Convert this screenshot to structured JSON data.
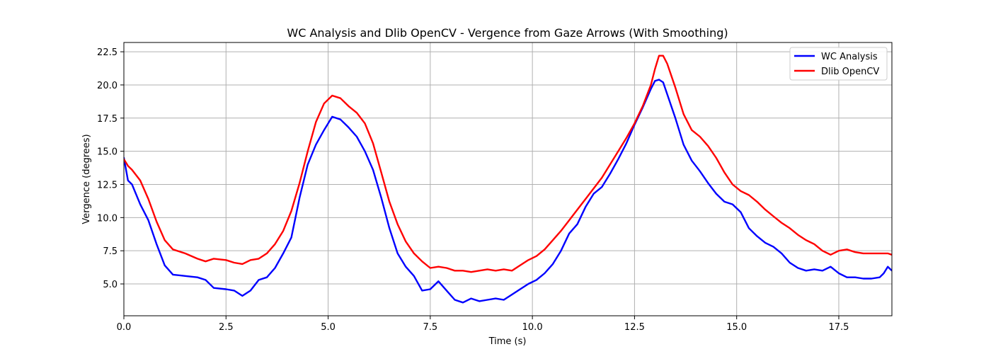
{
  "chart_data": {
    "type": "line",
    "title": "WC Analysis and Dlib OpenCV - Vergence from Gaze Arrows (With Smoothing)",
    "xlabel": "Time (s)",
    "ylabel": "Vergence (degrees)",
    "xlim": [
      0,
      18.8
    ],
    "ylim": [
      2.6,
      23.2
    ],
    "xticks": [
      0,
      2.5,
      5,
      7.5,
      10,
      12.5,
      15,
      17.5
    ],
    "xtick_labels": [
      "0.0",
      "2.5",
      "5.0",
      "7.5",
      "10.0",
      "12.5",
      "15.0",
      "17.5"
    ],
    "yticks": [
      5,
      7.5,
      10,
      12.5,
      15,
      17.5,
      20,
      22.5
    ],
    "ytick_labels": [
      "5.0",
      "7.5",
      "10.0",
      "12.5",
      "15.0",
      "17.5",
      "20.0",
      "22.5"
    ],
    "grid": true,
    "legend_position": "top-right",
    "series": [
      {
        "name": "WC Analysis",
        "color": "#0000ff",
        "x": [
          0,
          0.1,
          0.2,
          0.4,
          0.6,
          0.8,
          1.0,
          1.2,
          1.5,
          1.8,
          2.0,
          2.2,
          2.5,
          2.7,
          2.9,
          3.1,
          3.3,
          3.5,
          3.7,
          3.9,
          4.1,
          4.3,
          4.5,
          4.7,
          4.9,
          5.1,
          5.3,
          5.5,
          5.7,
          5.9,
          6.1,
          6.3,
          6.5,
          6.7,
          6.9,
          7.1,
          7.3,
          7.5,
          7.7,
          7.9,
          8.1,
          8.3,
          8.5,
          8.7,
          8.9,
          9.1,
          9.3,
          9.5,
          9.7,
          9.9,
          10.1,
          10.3,
          10.5,
          10.7,
          10.9,
          11.1,
          11.3,
          11.5,
          11.7,
          11.9,
          12.1,
          12.3,
          12.5,
          12.7,
          12.9,
          13.0,
          13.1,
          13.2,
          13.3,
          13.5,
          13.7,
          13.9,
          14.1,
          14.3,
          14.5,
          14.7,
          14.9,
          15.1,
          15.3,
          15.5,
          15.7,
          15.9,
          16.1,
          16.3,
          16.5,
          16.7,
          16.9,
          17.1,
          17.3,
          17.5,
          17.7,
          17.9,
          18.1,
          18.3,
          18.5,
          18.6,
          18.7,
          18.8
        ],
        "y": [
          14.5,
          12.8,
          12.5,
          11.0,
          9.8,
          8.0,
          6.4,
          5.7,
          5.6,
          5.5,
          5.3,
          4.7,
          4.6,
          4.5,
          4.1,
          4.5,
          5.3,
          5.5,
          6.2,
          7.3,
          8.5,
          11.5,
          14.0,
          15.5,
          16.6,
          17.6,
          17.4,
          16.8,
          16.1,
          15.0,
          13.6,
          11.5,
          9.2,
          7.3,
          6.3,
          5.6,
          4.5,
          4.6,
          5.2,
          4.5,
          3.8,
          3.6,
          3.9,
          3.7,
          3.8,
          3.9,
          3.8,
          4.2,
          4.6,
          5.0,
          5.3,
          5.8,
          6.5,
          7.5,
          8.8,
          9.5,
          10.8,
          11.8,
          12.3,
          13.3,
          14.4,
          15.6,
          17.0,
          18.3,
          19.7,
          20.3,
          20.4,
          20.2,
          19.3,
          17.5,
          15.5,
          14.3,
          13.5,
          12.6,
          11.8,
          11.2,
          11.0,
          10.4,
          9.2,
          8.6,
          8.1,
          7.8,
          7.3,
          6.6,
          6.2,
          6.0,
          6.1,
          6.0,
          6.3,
          5.8,
          5.5,
          5.5,
          5.4,
          5.4,
          5.5,
          5.8,
          6.3,
          6.0
        ]
      },
      {
        "name": "Dlib OpenCV",
        "color": "#ff0000",
        "x": [
          0,
          0.1,
          0.2,
          0.4,
          0.6,
          0.8,
          1.0,
          1.2,
          1.5,
          1.8,
          2.0,
          2.2,
          2.5,
          2.7,
          2.9,
          3.1,
          3.3,
          3.5,
          3.7,
          3.9,
          4.1,
          4.3,
          4.5,
          4.7,
          4.9,
          5.1,
          5.3,
          5.5,
          5.7,
          5.9,
          6.1,
          6.3,
          6.5,
          6.7,
          6.9,
          7.1,
          7.3,
          7.5,
          7.7,
          7.9,
          8.1,
          8.3,
          8.5,
          8.7,
          8.9,
          9.1,
          9.3,
          9.5,
          9.7,
          9.9,
          10.1,
          10.3,
          10.5,
          10.7,
          10.9,
          11.1,
          11.3,
          11.5,
          11.7,
          11.9,
          12.1,
          12.3,
          12.5,
          12.7,
          12.9,
          13.0,
          13.1,
          13.2,
          13.3,
          13.5,
          13.7,
          13.9,
          14.1,
          14.3,
          14.5,
          14.7,
          14.9,
          15.1,
          15.3,
          15.5,
          15.7,
          15.9,
          16.1,
          16.3,
          16.5,
          16.7,
          16.9,
          17.1,
          17.3,
          17.5,
          17.7,
          17.9,
          18.1,
          18.3,
          18.5,
          18.6,
          18.7,
          18.8
        ],
        "y": [
          14.4,
          13.9,
          13.6,
          12.8,
          11.4,
          9.7,
          8.3,
          7.6,
          7.3,
          6.9,
          6.7,
          6.9,
          6.8,
          6.6,
          6.5,
          6.8,
          6.9,
          7.3,
          8.0,
          9.0,
          10.5,
          12.6,
          15.0,
          17.2,
          18.6,
          19.2,
          19.0,
          18.4,
          17.9,
          17.1,
          15.6,
          13.4,
          11.2,
          9.5,
          8.2,
          7.3,
          6.7,
          6.2,
          6.3,
          6.2,
          6.0,
          6.0,
          5.9,
          6.0,
          6.1,
          6.0,
          6.1,
          6.0,
          6.4,
          6.8,
          7.1,
          7.6,
          8.3,
          9.0,
          9.8,
          10.6,
          11.4,
          12.2,
          13.0,
          14.0,
          15.0,
          16.0,
          17.1,
          18.4,
          20.0,
          21.2,
          22.2,
          22.2,
          21.6,
          19.8,
          17.8,
          16.6,
          16.1,
          15.4,
          14.5,
          13.4,
          12.5,
          12.0,
          11.7,
          11.2,
          10.6,
          10.1,
          9.6,
          9.2,
          8.7,
          8.3,
          8.0,
          7.5,
          7.2,
          7.5,
          7.6,
          7.4,
          7.3,
          7.3,
          7.3,
          7.3,
          7.3,
          7.2
        ]
      }
    ]
  }
}
